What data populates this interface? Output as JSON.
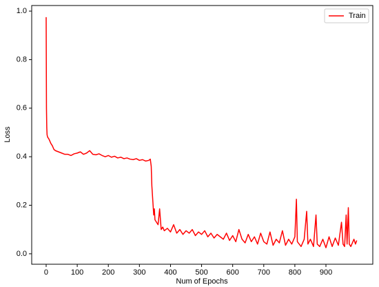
{
  "chart_data": {
    "type": "line",
    "xlabel": "Num of Epochs",
    "ylabel": "Loss",
    "x": [
      0,
      1,
      2,
      3,
      5,
      8,
      10,
      15,
      20,
      25,
      30,
      40,
      50,
      60,
      70,
      80,
      90,
      100,
      110,
      120,
      130,
      140,
      150,
      160,
      170,
      180,
      190,
      200,
      210,
      220,
      230,
      240,
      250,
      260,
      270,
      280,
      290,
      300,
      310,
      320,
      330,
      335,
      338,
      340,
      343,
      346,
      348,
      350,
      355,
      360,
      365,
      370,
      375,
      380,
      390,
      400,
      410,
      420,
      430,
      440,
      450,
      460,
      470,
      480,
      490,
      500,
      510,
      520,
      530,
      540,
      550,
      560,
      570,
      580,
      590,
      600,
      610,
      620,
      630,
      640,
      650,
      660,
      670,
      680,
      690,
      700,
      710,
      720,
      730,
      740,
      750,
      760,
      770,
      780,
      790,
      800,
      805,
      808,
      820,
      830,
      838,
      842,
      850,
      860,
      868,
      872,
      880,
      890,
      900,
      910,
      920,
      930,
      940,
      950,
      955,
      960,
      965,
      968,
      972,
      975,
      980,
      990,
      995,
      999
    ],
    "series": [
      {
        "name": "Train",
        "color": "#ff0000",
        "values": [
          0.975,
          0.6,
          0.52,
          0.49,
          0.48,
          0.475,
          0.47,
          0.455,
          0.445,
          0.43,
          0.425,
          0.42,
          0.415,
          0.41,
          0.41,
          0.405,
          0.412,
          0.415,
          0.42,
          0.41,
          0.415,
          0.425,
          0.41,
          0.408,
          0.412,
          0.405,
          0.4,
          0.405,
          0.398,
          0.402,
          0.395,
          0.398,
          0.392,
          0.395,
          0.39,
          0.388,
          0.392,
          0.385,
          0.388,
          0.382,
          0.385,
          0.39,
          0.36,
          0.28,
          0.22,
          0.16,
          0.185,
          0.14,
          0.13,
          0.12,
          0.185,
          0.1,
          0.11,
          0.095,
          0.105,
          0.09,
          0.12,
          0.085,
          0.1,
          0.08,
          0.095,
          0.085,
          0.1,
          0.075,
          0.09,
          0.08,
          0.095,
          0.07,
          0.085,
          0.065,
          0.08,
          0.07,
          0.06,
          0.085,
          0.055,
          0.075,
          0.05,
          0.1,
          0.06,
          0.045,
          0.08,
          0.05,
          0.07,
          0.04,
          0.085,
          0.05,
          0.04,
          0.09,
          0.035,
          0.06,
          0.045,
          0.095,
          0.035,
          0.06,
          0.04,
          0.07,
          0.225,
          0.05,
          0.03,
          0.06,
          0.175,
          0.04,
          0.06,
          0.03,
          0.16,
          0.04,
          0.03,
          0.06,
          0.025,
          0.07,
          0.03,
          0.065,
          0.035,
          0.13,
          0.04,
          0.03,
          0.16,
          0.04,
          0.19,
          0.04,
          0.03,
          0.06,
          0.04,
          0.055
        ]
      }
    ],
    "xlim": [
      -46.5,
      1050.7
    ],
    "ylim": [
      -0.043,
      1.023
    ],
    "xticks": [
      0,
      100,
      200,
      300,
      400,
      500,
      600,
      700,
      800,
      900
    ],
    "yticks": [
      {
        "value": 0,
        "label": "0.0"
      },
      0.2,
      0.4,
      0.6,
      0.8,
      {
        "value": 1,
        "label": "1.0"
      }
    ],
    "grid": false,
    "legend": "upper right"
  }
}
